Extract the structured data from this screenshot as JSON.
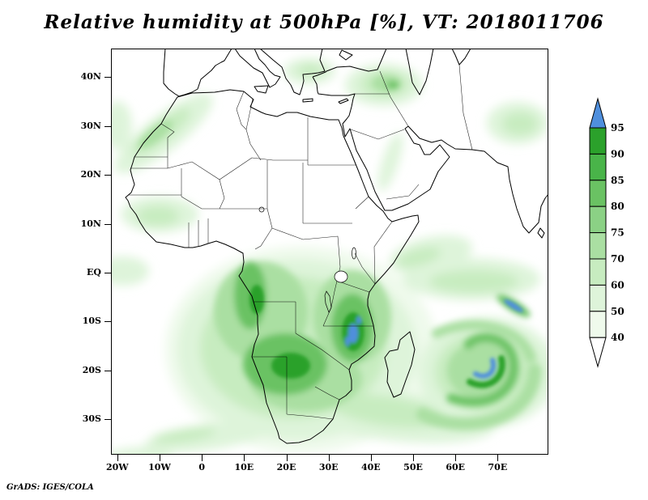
{
  "title": "Relative humidity at 500hPa [%], VT: 2018011706",
  "footer": "GrADS: IGES/COLA",
  "axes": {
    "lat": [
      {
        "label": "40N",
        "deg": 40
      },
      {
        "label": "30N",
        "deg": 30
      },
      {
        "label": "20N",
        "deg": 20
      },
      {
        "label": "10N",
        "deg": 10
      },
      {
        "label": "EQ",
        "deg": 0
      },
      {
        "label": "10S",
        "deg": -10
      },
      {
        "label": "20S",
        "deg": -20
      },
      {
        "label": "30S",
        "deg": -30
      }
    ],
    "lon": [
      {
        "label": "20W",
        "deg": -20
      },
      {
        "label": "10W",
        "deg": -10
      },
      {
        "label": "0",
        "deg": 0
      },
      {
        "label": "10E",
        "deg": 10
      },
      {
        "label": "20E",
        "deg": 20
      },
      {
        "label": "30E",
        "deg": 30
      },
      {
        "label": "40E",
        "deg": 40
      },
      {
        "label": "50E",
        "deg": 50
      },
      {
        "label": "60E",
        "deg": 60
      },
      {
        "label": "70E",
        "deg": 70
      }
    ]
  },
  "colorbar": {
    "labels": [
      "95",
      "90",
      "85",
      "80",
      "75",
      "70",
      "60",
      "50",
      "40"
    ],
    "colors_top_to_bottom": [
      "#4f8fdd",
      "#2ba12b",
      "#49b449",
      "#6ac263",
      "#8bd185",
      "#aadfa2",
      "#c7ecc0",
      "#def4da",
      "#effaec",
      "#ffffff"
    ],
    "level_colors": {
      "40": "#effaec",
      "50": "#def4da",
      "60": "#c7ecc0",
      "70": "#aadfa2",
      "75": "#8bd185",
      "80": "#6ac263",
      "85": "#49b449",
      "90": "#2ba12b",
      "95": "#4f8fdd"
    }
  },
  "chart_data": {
    "type": "heatmap",
    "title": "Relative humidity at 500hPa [%], VT: 2018011706",
    "variable": "Relative humidity",
    "level_hPa": 500,
    "units": "%",
    "valid_time": "2018011706",
    "domain": {
      "lon_min": -21.5,
      "lon_max": 82,
      "lat_min": -37,
      "lat_max": 46
    },
    "shade_levels": [
      40,
      50,
      60,
      70,
      75,
      80,
      85,
      90,
      95
    ],
    "colorbar_orientation": "vertical-right",
    "legend_note": "green shades 40-95 %, blue above 95 %",
    "features": [
      {
        "name": "Congo basin / Gabon coastal moist area",
        "approx_lon": 10,
        "approx_lat": -3,
        "max_rh": "85-90"
      },
      {
        "name": "Angola-Zambia moist core",
        "approx_lon": 20,
        "approx_lat": -14,
        "max_rh": "90"
      },
      {
        "name": "Tanzania / Lake Malawi moist core with >95 patches",
        "approx_lon": 35,
        "approx_lat": -11,
        "max_rh": ">95"
      },
      {
        "name": "Tropical cyclone spiral over SW Indian Ocean",
        "approx_lon": 64,
        "approx_lat": -19,
        "max_rh": ">95"
      },
      {
        "name": "Blue filament NE of cyclone",
        "approx_lon": 72,
        "approx_lat": -7,
        "max_rh": ">95"
      },
      {
        "name": "NW Africa (Morocco-Algeria) moist streak",
        "approx_lon": -8,
        "approx_lat": 28,
        "max_rh": "75-80"
      },
      {
        "name": "Eastern Turkey / Caucasus moist area",
        "approx_lon": 42,
        "approx_lat": 38,
        "max_rh": "75-85"
      },
      {
        "name": "Greece / Aegean light moist patch",
        "approx_lon": 24,
        "approx_lat": 41,
        "max_rh": "60"
      },
      {
        "name": "Red Sea narrow streak",
        "approx_lon": 38,
        "approx_lat": 22,
        "max_rh": "50"
      },
      {
        "name": "Horn of Africa / equatorial Indian Ocean band",
        "approx_lon": 55,
        "approx_lat": -2,
        "max_rh": "60-70"
      },
      {
        "name": "Southern ocean band south of Africa",
        "approx_lon": 25,
        "approx_lat": -33,
        "max_rh": "50-70"
      },
      {
        "name": "Senegal-Sahel light moist patch",
        "approx_lon": -12,
        "approx_lat": 12,
        "max_rh": "50-60"
      },
      {
        "name": "South Atlantic streaks (bottom left)",
        "approx_lon": -18,
        "approx_lat": -33,
        "max_rh": "50-60"
      }
    ]
  }
}
